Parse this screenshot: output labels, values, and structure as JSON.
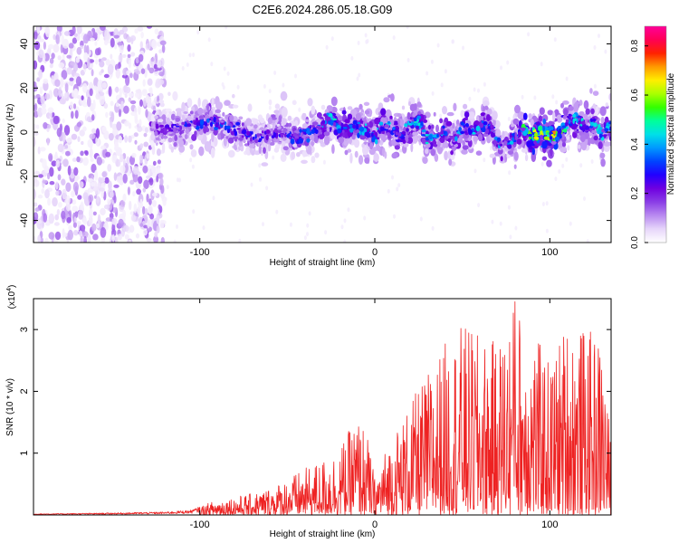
{
  "title": "C2E6.2024.286.05.18.G09",
  "chart_data": [
    {
      "type": "heatmap",
      "xlabel": "Height of straight line (km)",
      "ylabel": "Frequency (Hz)",
      "xlim": [
        -195,
        135
      ],
      "ylim": [
        -50,
        48
      ],
      "xticks": [
        -100,
        0,
        100
      ],
      "yticks": [
        -40,
        -20,
        0,
        20,
        40
      ],
      "colorbar": {
        "label": "Normalized spectral amplitude",
        "range": [
          0,
          0.88
        ],
        "ticks": [
          0.0,
          0.2,
          0.4,
          0.6,
          0.8
        ],
        "colormap": [
          "#ffffff",
          "#e6d5fa",
          "#b98af0",
          "#8a3de6",
          "#6f00e0",
          "#2200ff",
          "#0044ff",
          "#0099ff",
          "#00e0e8",
          "#00ff99",
          "#33ff00",
          "#aaff00",
          "#ffee00",
          "#ff9900",
          "#ff2200",
          "#ff0055",
          "#ff0099"
        ]
      },
      "ridge": [
        [
          -125,
          2
        ],
        [
          -115,
          1
        ],
        [
          -105,
          4
        ],
        [
          -95,
          5
        ],
        [
          -85,
          3
        ],
        [
          -75,
          0
        ],
        [
          -65,
          -2
        ],
        [
          -55,
          1
        ],
        [
          -45,
          -3
        ],
        [
          -35,
          0
        ],
        [
          -25,
          6
        ],
        [
          -20,
          2
        ],
        [
          -10,
          2
        ],
        [
          -5,
          1
        ],
        [
          0,
          -2
        ],
        [
          5,
          3
        ],
        [
          10,
          3
        ],
        [
          15,
          -2
        ],
        [
          20,
          3
        ],
        [
          25,
          5
        ],
        [
          30,
          -2
        ],
        [
          35,
          -3
        ],
        [
          40,
          1
        ],
        [
          45,
          -3
        ],
        [
          50,
          2
        ],
        [
          55,
          0
        ],
        [
          60,
          1
        ],
        [
          65,
          5
        ],
        [
          70,
          -5
        ],
        [
          75,
          -7
        ],
        [
          80,
          -1
        ],
        [
          85,
          1
        ],
        [
          90,
          -2
        ],
        [
          95,
          0
        ],
        [
          100,
          -2
        ],
        [
          105,
          -1
        ],
        [
          110,
          4
        ],
        [
          115,
          6
        ],
        [
          120,
          3
        ],
        [
          125,
          5
        ],
        [
          130,
          -1
        ],
        [
          135,
          3
        ]
      ],
      "ridge_peak_amplitude": [
        [
          -125,
          0.25
        ],
        [
          -95,
          0.4
        ],
        [
          -55,
          0.3
        ],
        [
          -30,
          0.45
        ],
        [
          -20,
          0.55
        ],
        [
          0,
          0.45
        ],
        [
          20,
          0.55
        ],
        [
          40,
          0.45
        ],
        [
          60,
          0.5
        ],
        [
          80,
          0.45
        ],
        [
          90,
          0.7
        ],
        [
          100,
          0.85
        ],
        [
          110,
          0.55
        ],
        [
          135,
          0.5
        ]
      ]
    },
    {
      "type": "line",
      "xlabel": "Height of straight line (km)",
      "ylabel": "SNR (10 * v/v)",
      "y_multiplier": "(x10",
      "y_multiplier_exp": "4",
      "y_multiplier_close": ")",
      "xlim": [
        -195,
        135
      ],
      "ylim": [
        0,
        3.5
      ],
      "xticks": [
        -100,
        0,
        100
      ],
      "yticks": [
        1,
        2,
        3
      ],
      "series": [
        {
          "color": "#ee2222",
          "envelope": [
            [
              -195,
              0.02
            ],
            [
              -160,
              0.03
            ],
            [
              -140,
              0.04
            ],
            [
              -120,
              0.05
            ],
            [
              -105,
              0.08
            ],
            [
              -90,
              0.25
            ],
            [
              -80,
              0.3
            ],
            [
              -70,
              0.35
            ],
            [
              -60,
              0.45
            ],
            [
              -50,
              0.6
            ],
            [
              -40,
              0.75
            ],
            [
              -30,
              0.9
            ],
            [
              -20,
              1.1
            ],
            [
              -10,
              1.6
            ],
            [
              -5,
              1.4
            ],
            [
              0,
              0.6
            ],
            [
              5,
              1.0
            ],
            [
              10,
              1.3
            ],
            [
              20,
              1.8
            ],
            [
              30,
              2.3
            ],
            [
              40,
              2.8
            ],
            [
              50,
              3.1
            ],
            [
              60,
              2.9
            ],
            [
              70,
              2.8
            ],
            [
              80,
              3.5
            ],
            [
              90,
              3.0
            ],
            [
              100,
              2.5
            ],
            [
              110,
              3.2
            ],
            [
              120,
              3.0
            ],
            [
              130,
              2.9
            ],
            [
              135,
              1.1
            ]
          ],
          "max": [
            80,
            3.45
          ]
        }
      ]
    }
  ]
}
